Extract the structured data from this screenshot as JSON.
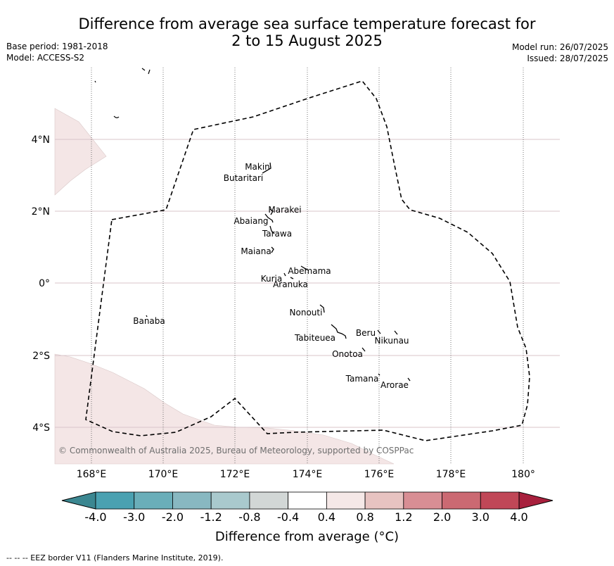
{
  "title_line1": "Difference from average sea surface temperature forecast for",
  "title_line2": "2 to 15 August 2025",
  "base_period": "Base period: 1981-2018",
  "model": "Model: ACCESS-S2",
  "model_run": "Model run: 26/07/2025",
  "issued": "Issued: 28/07/2025",
  "copyright": "© Commonwealth of Australia 2025, Bureau of Meteorology, supported by COSPPac",
  "lon_labels": [
    "168°E",
    "170°E",
    "172°E",
    "174°E",
    "176°E",
    "178°E",
    "180°"
  ],
  "lat_labels": [
    "4°N",
    "2°N",
    "0°",
    "2°S",
    "4°S"
  ],
  "islands": [
    {
      "name": "Makin"
    },
    {
      "name": "Butaritari"
    },
    {
      "name": "Marakei"
    },
    {
      "name": "Abaiang"
    },
    {
      "name": "Tarawa"
    },
    {
      "name": "Maiana"
    },
    {
      "name": "Abemama"
    },
    {
      "name": "Kuria"
    },
    {
      "name": "Aranuka"
    },
    {
      "name": "Nonouti"
    },
    {
      "name": "Banaba"
    },
    {
      "name": "Beru"
    },
    {
      "name": "Tabiteuea"
    },
    {
      "name": "Nikunau"
    },
    {
      "name": "Onotoa"
    },
    {
      "name": "Tamana"
    },
    {
      "name": "Arorae"
    }
  ],
  "colorbar": {
    "ticks": [
      "-4.0",
      "-3.0",
      "-2.0",
      "-1.2",
      "-0.8",
      "-0.4",
      "0.4",
      "0.8",
      "1.2",
      "2.0",
      "3.0",
      "4.0"
    ],
    "colors": [
      "#3b8791",
      "#4aa1b1",
      "#6aaeb9",
      "#88b8c1",
      "#a9c9cd",
      "#d2d7d6",
      "#ffffff",
      "#f5e8e7",
      "#e7c3c1",
      "#d88e94",
      "#cb6972",
      "#c04757",
      "#a8203d"
    ],
    "label": "Difference from average (°C)"
  },
  "anomaly_color": "#f4e6e6",
  "footnote": "-- -- -- EEZ border V11 (Flanders Marine Institute, 2019)."
}
